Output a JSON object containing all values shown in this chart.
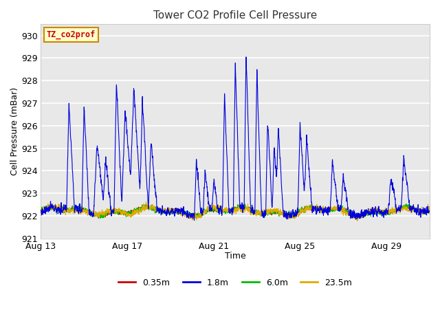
{
  "title": "Tower CO2 Profile Cell Pressure",
  "xlabel": "Time",
  "ylabel": "Cell Pressure (mBar)",
  "ylim": [
    921.0,
    930.5
  ],
  "yticks": [
    921.0,
    922.0,
    923.0,
    924.0,
    925.0,
    926.0,
    927.0,
    928.0,
    929.0,
    930.0
  ],
  "xlim_days": [
    0,
    18
  ],
  "xtick_positions": [
    0,
    4,
    8,
    12,
    16
  ],
  "xtick_labels": [
    "Aug 13",
    "Aug 17",
    "Aug 21",
    "Aug 25",
    "Aug 29"
  ],
  "legend_labels": [
    "0.35m",
    "1.8m",
    "6.0m",
    "23.5m"
  ],
  "legend_colors": [
    "#cc0000",
    "#0000dd",
    "#00bb00",
    "#ddaa00"
  ],
  "annotation_text": "TZ_co2prof",
  "annotation_box_color": "#ffffcc",
  "annotation_box_edge": "#cc8800",
  "fig_bg_color": "#ffffff",
  "plot_bg_color": "#e8e8e8",
  "grid_color": "#ffffff",
  "title_fontsize": 11,
  "axis_fontsize": 9,
  "tick_fontsize": 9
}
